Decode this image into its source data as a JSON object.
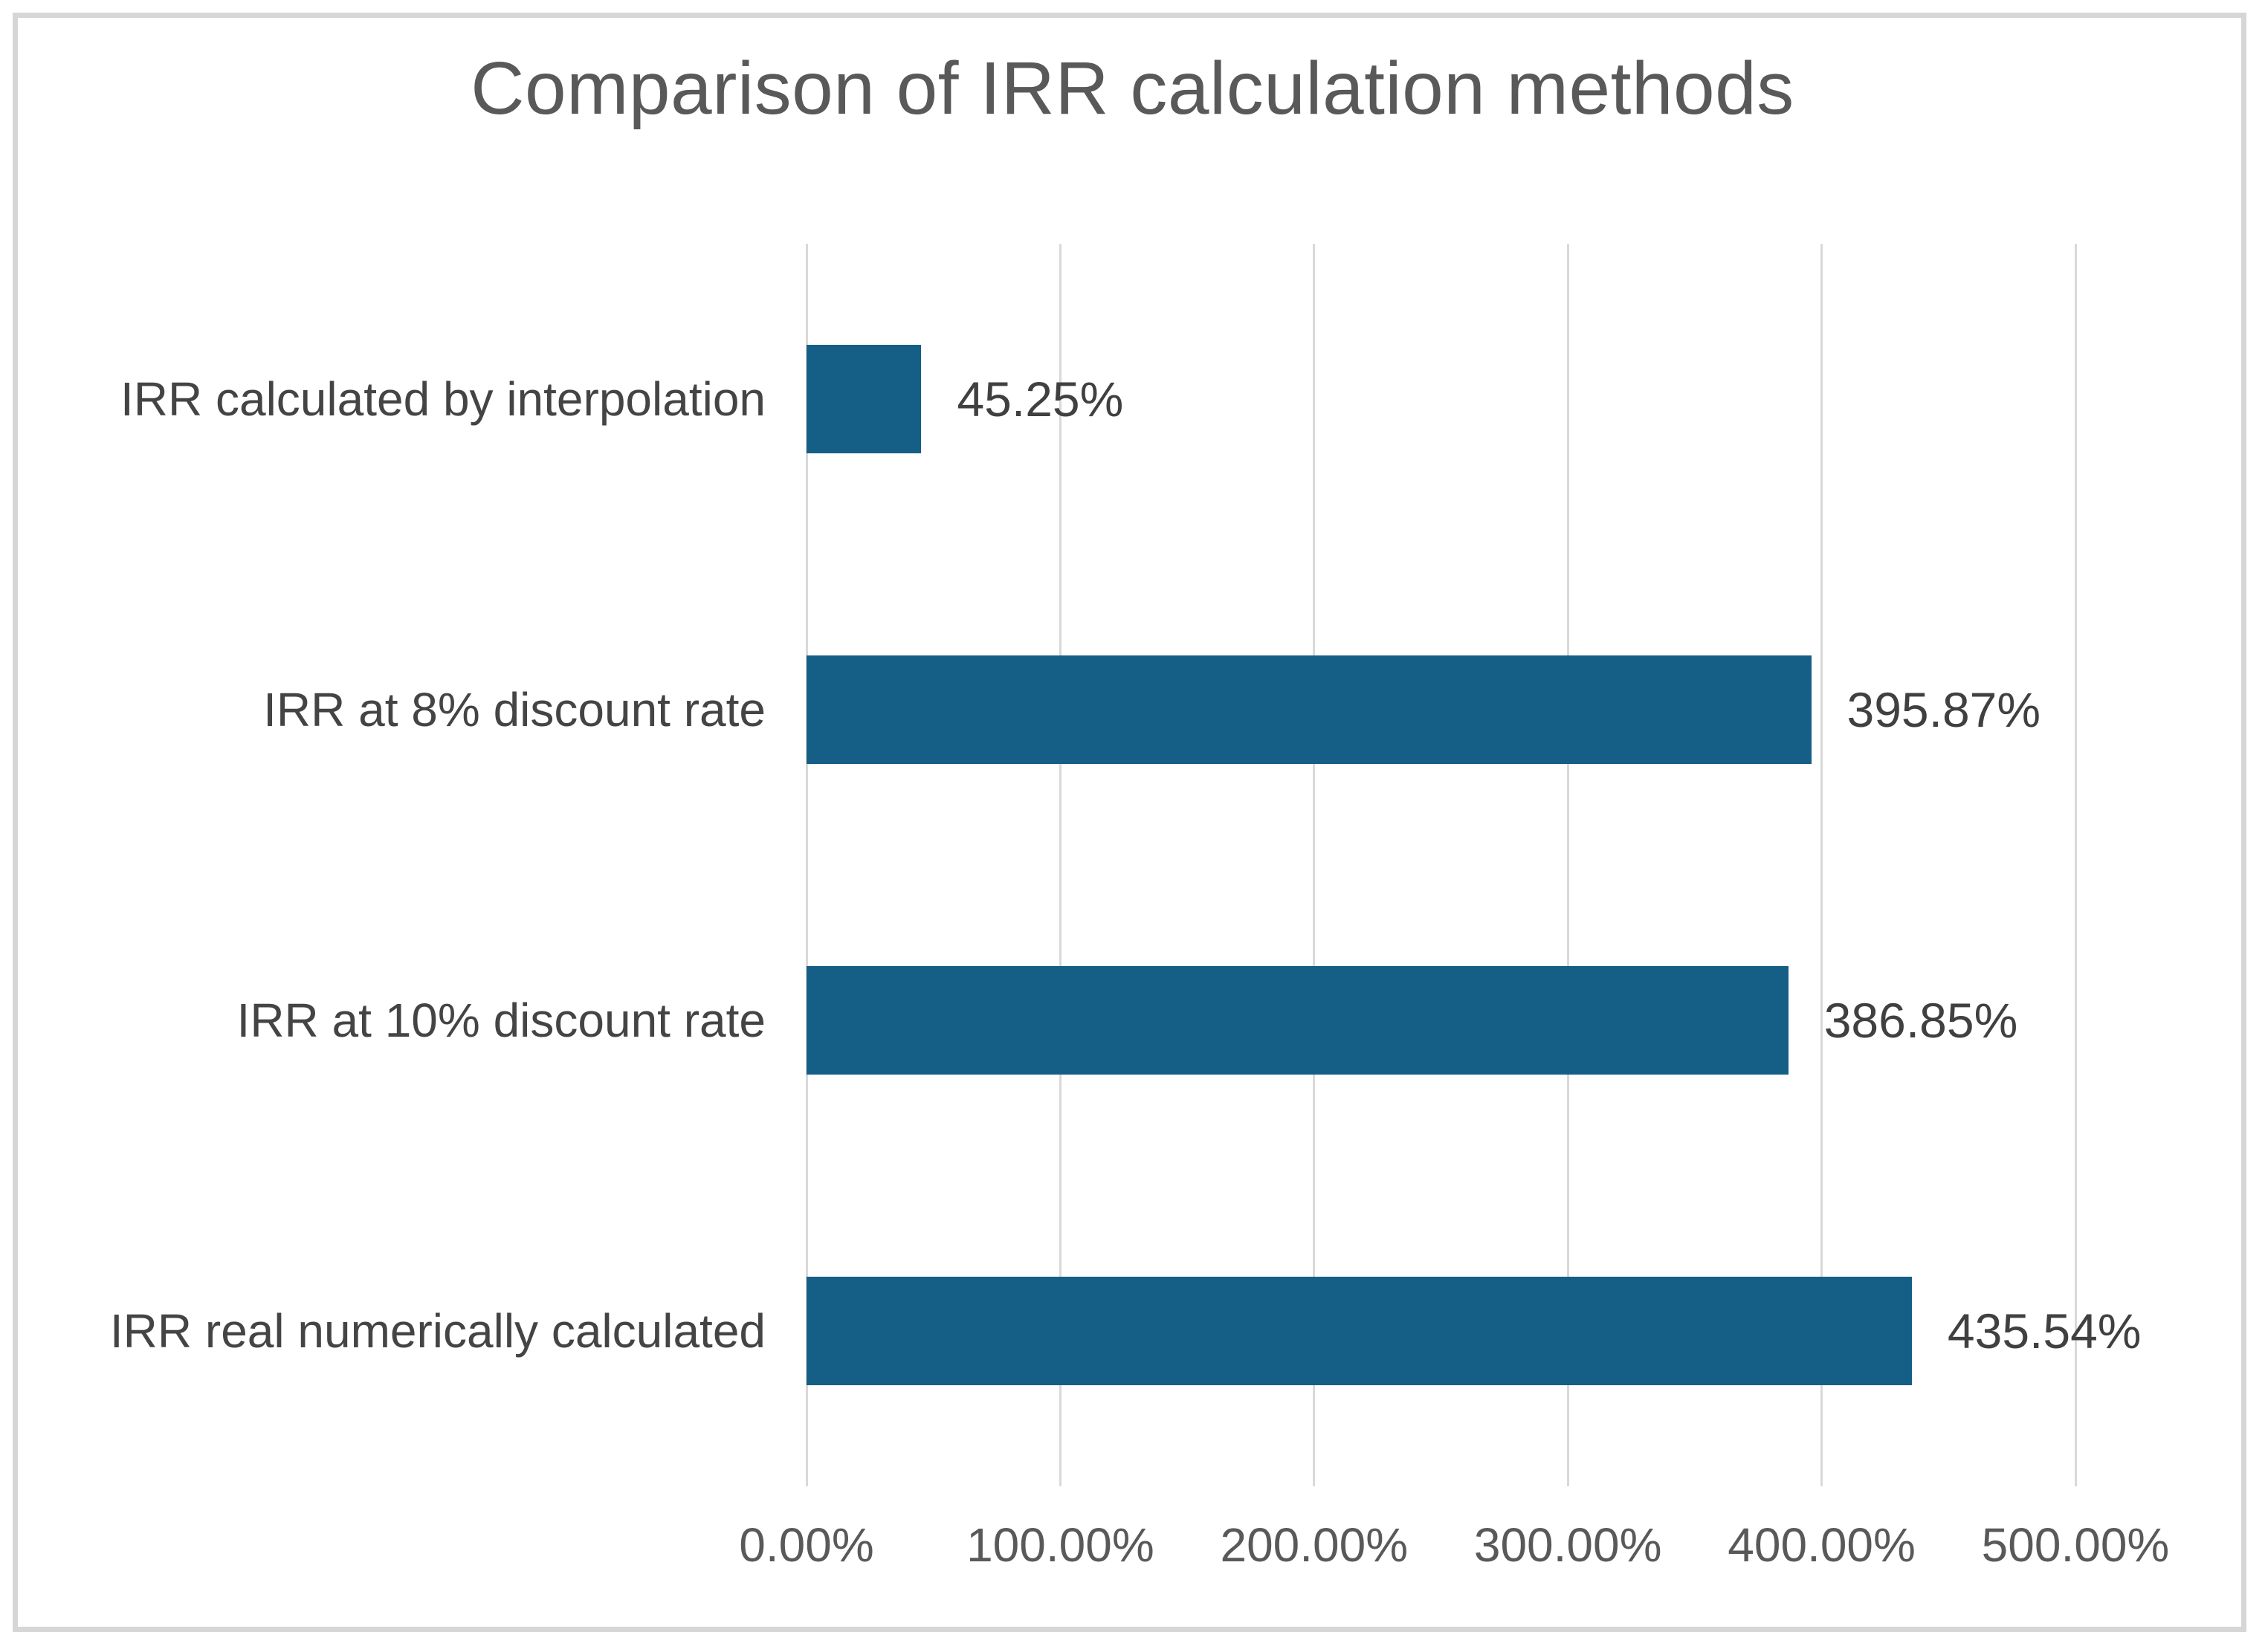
{
  "chart_data": {
    "type": "bar",
    "orientation": "horizontal",
    "title": "Comparison of IRR calculation methods",
    "categories": [
      "IRR calculated by interpolation",
      "IRR at 8% discount rate",
      "IRR at 10% discount rate",
      "IRR real numerically calculated"
    ],
    "values": [
      45.25,
      395.87,
      386.85,
      435.54
    ],
    "data_labels": [
      "45.25%",
      "395.87%",
      "386.85%",
      "435.54%"
    ],
    "x_axis": {
      "min": 0,
      "max": 500,
      "unit": "percent",
      "tick_labels": [
        "0.00%",
        "100.00%",
        "200.00%",
        "300.00%",
        "400.00%",
        "500.00%"
      ]
    },
    "grid": "vertical-only",
    "legend": "none",
    "colors": {
      "bar": "#155E86",
      "gridline": "#D9D9D9",
      "title_text": "#595959",
      "category_text": "#444444",
      "data_label_text": "#404040",
      "axis_tick_text": "#595959",
      "frame_border": "#D6D6D6",
      "background": "#FFFFFF"
    }
  }
}
